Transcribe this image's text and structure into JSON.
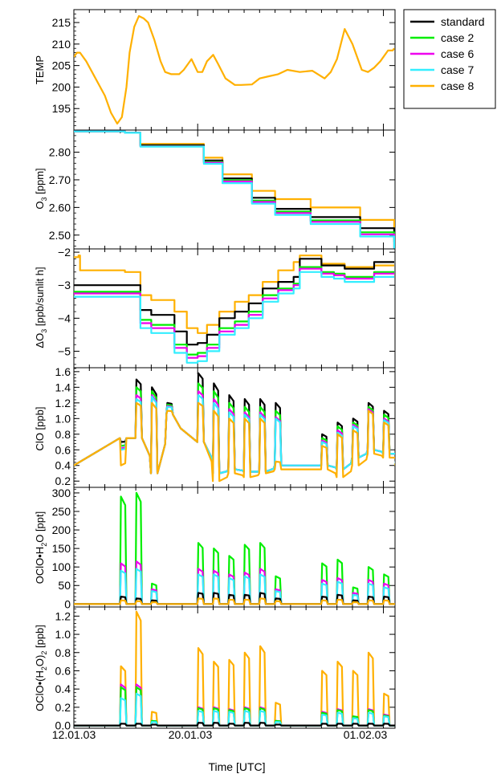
{
  "figure": {
    "x_axis_label": "Time [UTC]"
  },
  "legend": {
    "placement": "top-right, outside plot area",
    "entries": [
      {
        "name": "standard",
        "color": "#000000"
      },
      {
        "name": "case 2",
        "color": "#00ee00"
      },
      {
        "name": "case 6",
        "color": "#ee00ee"
      },
      {
        "name": "case 7",
        "color": "#33eeff"
      },
      {
        "name": "case 8",
        "color": "#ffb000"
      }
    ]
  },
  "x_ticks": [
    "12.01.03",
    "20.01.03",
    "01.02.03"
  ],
  "chart_data": [
    {
      "type": "line",
      "panel": "TEMP",
      "ylabel": "TEMP",
      "ylim": [
        190,
        218
      ],
      "yticks": [
        "195",
        "200",
        "205",
        "210",
        "215"
      ],
      "yticks_values": [
        195,
        200,
        205,
        210,
        215
      ],
      "x_unit": "day of January 2003",
      "series": [
        {
          "name": "case 8",
          "x": [
            12.0,
            12.2,
            12.4,
            12.8,
            13.4,
            14.0,
            14.4,
            14.8,
            15.1,
            15.4,
            15.6,
            15.9,
            16.2,
            16.5,
            16.8,
            17.2,
            17.6,
            17.9,
            18.3,
            18.8,
            19.1,
            19.6,
            20.0,
            20.3,
            20.6,
            21.0,
            21.3,
            21.8,
            22.4,
            22.8,
            23.5,
            24.0,
            24.6,
            25.2,
            25.8,
            26.6,
            27.4,
            28.2,
            28.6,
            29.0,
            29.5,
            30.0,
            30.6,
            31.0,
            31.4,
            31.8,
            32.3,
            32.6,
            32.7
          ],
          "values": [
            207,
            208,
            208,
            206,
            202,
            198,
            194,
            191.5,
            193,
            200,
            208,
            214,
            216.5,
            216,
            215,
            211,
            206,
            203.5,
            203,
            203,
            204,
            206.5,
            203.5,
            203.5,
            206,
            207.5,
            205.5,
            202,
            200.5,
            200.5,
            200.6,
            202,
            202.5,
            203,
            204,
            203.5,
            203.8,
            202,
            203.5,
            206.5,
            213.5,
            210,
            204,
            203.5,
            204.5,
            206,
            208.5,
            208.5,
            209
          ]
        }
      ]
    },
    {
      "type": "line",
      "panel": "O3",
      "ylabel": "O3 [ppm]",
      "ylim": [
        2.45,
        2.88
      ],
      "yticks": [
        "2.50",
        "2.60",
        "2.70",
        "2.80"
      ],
      "yticks_values": [
        2.5,
        2.6,
        2.7,
        2.8
      ],
      "x_unit": "day of January 2003",
      "series": [
        {
          "name": "case 8",
          "x": [
            12.0,
            15.3,
            16.3,
            18.6,
            20.4,
            21.6,
            23.5,
            25.0,
            27.3,
            30.5,
            32.7
          ],
          "values": [
            2.875,
            2.87,
            2.83,
            2.83,
            2.78,
            2.72,
            2.66,
            2.63,
            2.6,
            2.555,
            2.5
          ]
        },
        {
          "name": "standard",
          "x": [
            12.0,
            15.3,
            16.3,
            18.6,
            20.4,
            21.6,
            23.5,
            25.0,
            27.3,
            30.5,
            32.7
          ],
          "values": [
            2.875,
            2.87,
            2.825,
            2.825,
            2.77,
            2.705,
            2.635,
            2.595,
            2.565,
            2.525,
            2.475
          ]
        },
        {
          "name": "case 2",
          "x": [
            12.0,
            15.3,
            16.3,
            18.6,
            20.4,
            21.6,
            23.5,
            25.0,
            27.3,
            30.5,
            32.7
          ],
          "values": [
            2.875,
            2.87,
            2.822,
            2.822,
            2.765,
            2.698,
            2.625,
            2.585,
            2.553,
            2.51,
            2.455
          ]
        },
        {
          "name": "case 6",
          "x": [
            12.0,
            15.3,
            16.3,
            18.6,
            20.4,
            21.6,
            23.5,
            25.0,
            27.3,
            30.5,
            32.7
          ],
          "values": [
            2.875,
            2.87,
            2.821,
            2.821,
            2.762,
            2.694,
            2.62,
            2.58,
            2.548,
            2.503,
            2.445
          ]
        },
        {
          "name": "case 7",
          "x": [
            12.0,
            15.3,
            16.3,
            18.6,
            20.4,
            21.6,
            23.5,
            25.0,
            27.3,
            30.5,
            32.7
          ],
          "values": [
            2.875,
            2.87,
            2.82,
            2.82,
            2.758,
            2.688,
            2.614,
            2.573,
            2.54,
            2.495,
            2.435
          ]
        }
      ]
    },
    {
      "type": "line",
      "panel": "dO3",
      "ylabel": "ΔO3 [ppb/sunlit h]",
      "ylim": [
        -5.5,
        -1.9
      ],
      "yticks": [
        "−5",
        "−4",
        "−3",
        "−2"
      ],
      "yticks_values": [
        -5,
        -4,
        -3,
        -2
      ],
      "x_unit": "day of January 2003",
      "series": [
        {
          "name": "case 8",
          "x": [
            12.0,
            12.3,
            12.4,
            15.3,
            15.8,
            16.3,
            17.0,
            18.5,
            19.3,
            20.0,
            20.6,
            21.4,
            22.4,
            23.3,
            24.2,
            25.2,
            25.8,
            26.2,
            26.6,
            27.3,
            28.0,
            28.8,
            29.5,
            30.5,
            31.4,
            32.7
          ],
          "values": [
            -2.15,
            -2.1,
            -2.55,
            -2.6,
            -2.6,
            -3.3,
            -3.45,
            -3.8,
            -4.3,
            -4.45,
            -4.2,
            -3.8,
            -3.5,
            -3.3,
            -2.9,
            -2.55,
            -2.55,
            -2.3,
            -2.1,
            -2.1,
            -2.35,
            -2.35,
            -2.45,
            -2.45,
            -2.4,
            -2.4
          ]
        },
        {
          "name": "standard",
          "x": [
            12.0,
            12.4,
            15.3,
            15.8,
            16.3,
            17.0,
            18.5,
            19.3,
            20.0,
            20.6,
            21.4,
            22.4,
            23.3,
            24.2,
            25.2,
            26.2,
            26.6,
            27.3,
            28.0,
            28.8,
            29.5,
            30.5,
            31.4,
            32.7
          ],
          "values": [
            -3.0,
            -3.0,
            -3.0,
            -3.0,
            -3.75,
            -3.9,
            -4.4,
            -4.8,
            -4.75,
            -4.5,
            -4.0,
            -3.8,
            -3.55,
            -3.1,
            -2.9,
            -2.75,
            -2.2,
            -2.2,
            -2.4,
            -2.4,
            -2.5,
            -2.5,
            -2.3,
            -2.3
          ]
        },
        {
          "name": "case 2",
          "x": [
            12.0,
            12.4,
            15.3,
            15.8,
            16.3,
            17.0,
            18.5,
            19.3,
            20.0,
            20.6,
            21.4,
            22.4,
            23.3,
            24.2,
            25.2,
            26.2,
            26.6,
            27.3,
            28.0,
            28.8,
            29.5,
            30.5,
            31.4,
            32.7
          ],
          "values": [
            -3.2,
            -3.2,
            -3.2,
            -3.2,
            -4.05,
            -4.2,
            -4.8,
            -5.1,
            -5.05,
            -4.8,
            -4.3,
            -4.1,
            -3.8,
            -3.3,
            -3.1,
            -2.95,
            -2.45,
            -2.45,
            -2.6,
            -2.65,
            -2.75,
            -2.75,
            -2.6,
            -2.6
          ]
        },
        {
          "name": "case 6",
          "x": [
            12.0,
            12.4,
            15.3,
            15.8,
            16.3,
            17.0,
            18.5,
            19.3,
            20.0,
            20.6,
            21.4,
            22.4,
            23.3,
            24.2,
            25.2,
            26.2,
            26.6,
            27.3,
            28.0,
            28.8,
            29.5,
            30.5,
            31.4,
            32.7
          ],
          "values": [
            -3.25,
            -3.25,
            -3.25,
            -3.25,
            -4.15,
            -4.3,
            -4.9,
            -5.2,
            -5.15,
            -4.9,
            -4.4,
            -4.2,
            -3.9,
            -3.4,
            -3.15,
            -3.0,
            -2.5,
            -2.5,
            -2.65,
            -2.7,
            -2.8,
            -2.8,
            -2.65,
            -2.65
          ]
        },
        {
          "name": "case 7",
          "x": [
            12.0,
            12.4,
            15.3,
            15.8,
            16.3,
            17.0,
            18.5,
            19.3,
            20.0,
            20.6,
            21.4,
            22.4,
            23.3,
            24.2,
            25.2,
            26.2,
            26.6,
            27.3,
            28.0,
            28.8,
            29.5,
            30.5,
            31.4,
            32.7
          ],
          "values": [
            -3.35,
            -3.35,
            -3.35,
            -3.35,
            -4.3,
            -4.45,
            -5.05,
            -5.35,
            -5.3,
            -5.0,
            -4.5,
            -4.3,
            -4.0,
            -3.5,
            -3.25,
            -3.1,
            -2.6,
            -2.6,
            -2.75,
            -2.8,
            -2.9,
            -2.9,
            -2.75,
            -2.75
          ]
        }
      ]
    },
    {
      "type": "line",
      "panel": "ClO",
      "ylabel": "ClO [ppb]",
      "ylim": [
        0.12,
        1.65
      ],
      "yticks": [
        "0.2",
        "0.4",
        "0.6",
        "0.8",
        "1.0",
        "1.2",
        "1.4",
        "1.6"
      ],
      "yticks_values": [
        0.2,
        0.4,
        0.6,
        0.8,
        1.0,
        1.2,
        1.4,
        1.6
      ],
      "x_unit": "day of January 2003",
      "peak_days": [
        15.1,
        16.1,
        17.1,
        18.1,
        20.1,
        21.1,
        22.1,
        23.1,
        24.1,
        25.1,
        28.1,
        29.1,
        30.1,
        31.1,
        32.1
      ],
      "series": [
        {
          "name": "standard",
          "baseline": [
            0.75,
            0.75,
            0.3,
            1.05,
            0.7,
            0.3,
            0.35,
            0.32,
            0.32,
            0.4,
            0.4,
            0.35,
            0.5,
            0.6,
            0.55
          ],
          "peaks": [
            0.7,
            1.5,
            1.4,
            1.2,
            1.58,
            1.45,
            1.3,
            1.25,
            1.25,
            1.2,
            0.8,
            0.95,
            1.0,
            1.2,
            1.1
          ]
        },
        {
          "name": "case 2",
          "baseline": [
            0.75,
            0.75,
            0.3,
            1.05,
            0.7,
            0.3,
            0.35,
            0.32,
            0.32,
            0.4,
            0.4,
            0.35,
            0.5,
            0.6,
            0.55
          ],
          "peaks": [
            0.65,
            1.4,
            1.35,
            1.18,
            1.45,
            1.35,
            1.2,
            1.15,
            1.15,
            1.1,
            0.75,
            0.9,
            0.95,
            1.15,
            1.05
          ]
        },
        {
          "name": "case 6",
          "baseline": [
            0.75,
            0.75,
            0.3,
            1.05,
            0.7,
            0.3,
            0.35,
            0.32,
            0.32,
            0.4,
            0.4,
            0.35,
            0.5,
            0.6,
            0.55
          ],
          "peaks": [
            0.62,
            1.3,
            1.3,
            1.16,
            1.35,
            1.25,
            1.12,
            1.08,
            1.08,
            1.02,
            0.72,
            0.85,
            0.92,
            1.12,
            1.0
          ]
        },
        {
          "name": "case 7",
          "baseline": [
            0.75,
            0.75,
            0.3,
            1.05,
            0.7,
            0.3,
            0.35,
            0.32,
            0.32,
            0.4,
            0.4,
            0.35,
            0.5,
            0.6,
            0.55
          ],
          "peaks": [
            0.6,
            1.25,
            1.28,
            1.15,
            1.3,
            1.2,
            1.08,
            1.05,
            1.05,
            1.0,
            0.7,
            0.82,
            0.9,
            1.1,
            0.98
          ]
        },
        {
          "name": "case 8",
          "baseline": [
            0.75,
            0.75,
            0.3,
            1.05,
            0.7,
            0.2,
            0.3,
            0.25,
            0.3,
            0.35,
            0.35,
            0.25,
            0.4,
            0.55,
            0.5
          ],
          "peaks": [
            0.4,
            1.2,
            1.2,
            1.1,
            1.2,
            1.1,
            1.0,
            1.0,
            1.0,
            0.45,
            0.65,
            0.8,
            0.85,
            1.1,
            0.95
          ]
        }
      ]
    },
    {
      "type": "line",
      "panel": "OClO_H2O",
      "ylabel": "OClO•H2O [ppt]",
      "ylim": [
        -8,
        315
      ],
      "yticks": [
        "0",
        "50",
        "100",
        "150",
        "200",
        "250",
        "300"
      ],
      "yticks_values": [
        0,
        50,
        100,
        150,
        200,
        250,
        300
      ],
      "x_unit": "day of January 2003",
      "peak_days": [
        15.1,
        16.1,
        17.1,
        20.1,
        21.1,
        22.1,
        23.1,
        24.1,
        25.1,
        28.1,
        29.1,
        30.1,
        31.1,
        32.1
      ],
      "series": [
        {
          "name": "case 2",
          "peaks": [
            290,
            300,
            55,
            165,
            150,
            130,
            160,
            165,
            75,
            110,
            120,
            45,
            100,
            80
          ]
        },
        {
          "name": "case 6",
          "peaks": [
            110,
            115,
            40,
            95,
            90,
            80,
            85,
            95,
            40,
            65,
            70,
            30,
            65,
            55
          ]
        },
        {
          "name": "case 7",
          "peaks": [
            90,
            95,
            35,
            80,
            80,
            70,
            75,
            80,
            35,
            55,
            60,
            25,
            55,
            45
          ]
        },
        {
          "name": "standard",
          "peaks": [
            20,
            15,
            10,
            30,
            30,
            25,
            25,
            30,
            15,
            20,
            25,
            10,
            20,
            20
          ]
        },
        {
          "name": "case 8",
          "peaks": [
            10,
            8,
            5,
            15,
            15,
            12,
            12,
            15,
            8,
            10,
            12,
            5,
            10,
            10
          ]
        }
      ]
    },
    {
      "type": "line",
      "panel": "OClO_H2O2",
      "ylabel": "OClO•(H2O)2 [ppb]",
      "ylim": [
        -0.03,
        1.3
      ],
      "yticks": [
        "0.0",
        "0.2",
        "0.4",
        "0.6",
        "0.8",
        "1.0",
        "1.2"
      ],
      "yticks_values": [
        0,
        0.2,
        0.4,
        0.6,
        0.8,
        1.0,
        1.2
      ],
      "x_unit": "day of January 2003",
      "peak_days": [
        15.1,
        16.1,
        17.1,
        20.1,
        21.1,
        22.1,
        23.1,
        24.1,
        25.1,
        28.1,
        29.1,
        30.1,
        31.1,
        32.1
      ],
      "series": [
        {
          "name": "case 8",
          "peaks": [
            0.65,
            1.25,
            0.15,
            0.85,
            0.7,
            0.72,
            0.8,
            0.87,
            0.25,
            0.6,
            0.7,
            0.6,
            0.8,
            0.35
          ]
        },
        {
          "name": "case 6",
          "peaks": [
            0.45,
            0.45,
            0.05,
            0.2,
            0.2,
            0.18,
            0.2,
            0.2,
            0.05,
            0.15,
            0.18,
            0.1,
            0.18,
            0.12
          ]
        },
        {
          "name": "case 2",
          "peaks": [
            0.42,
            0.42,
            0.05,
            0.19,
            0.19,
            0.17,
            0.19,
            0.19,
            0.05,
            0.14,
            0.17,
            0.1,
            0.17,
            0.11
          ]
        },
        {
          "name": "case 7",
          "peaks": [
            0.3,
            0.35,
            0.04,
            0.16,
            0.16,
            0.15,
            0.16,
            0.16,
            0.04,
            0.12,
            0.14,
            0.08,
            0.14,
            0.1
          ]
        },
        {
          "name": "standard",
          "peaks": [
            0.02,
            0.02,
            0.01,
            0.03,
            0.03,
            0.02,
            0.03,
            0.03,
            0.01,
            0.02,
            0.02,
            0.02,
            0.02,
            0.02
          ]
        }
      ]
    }
  ]
}
